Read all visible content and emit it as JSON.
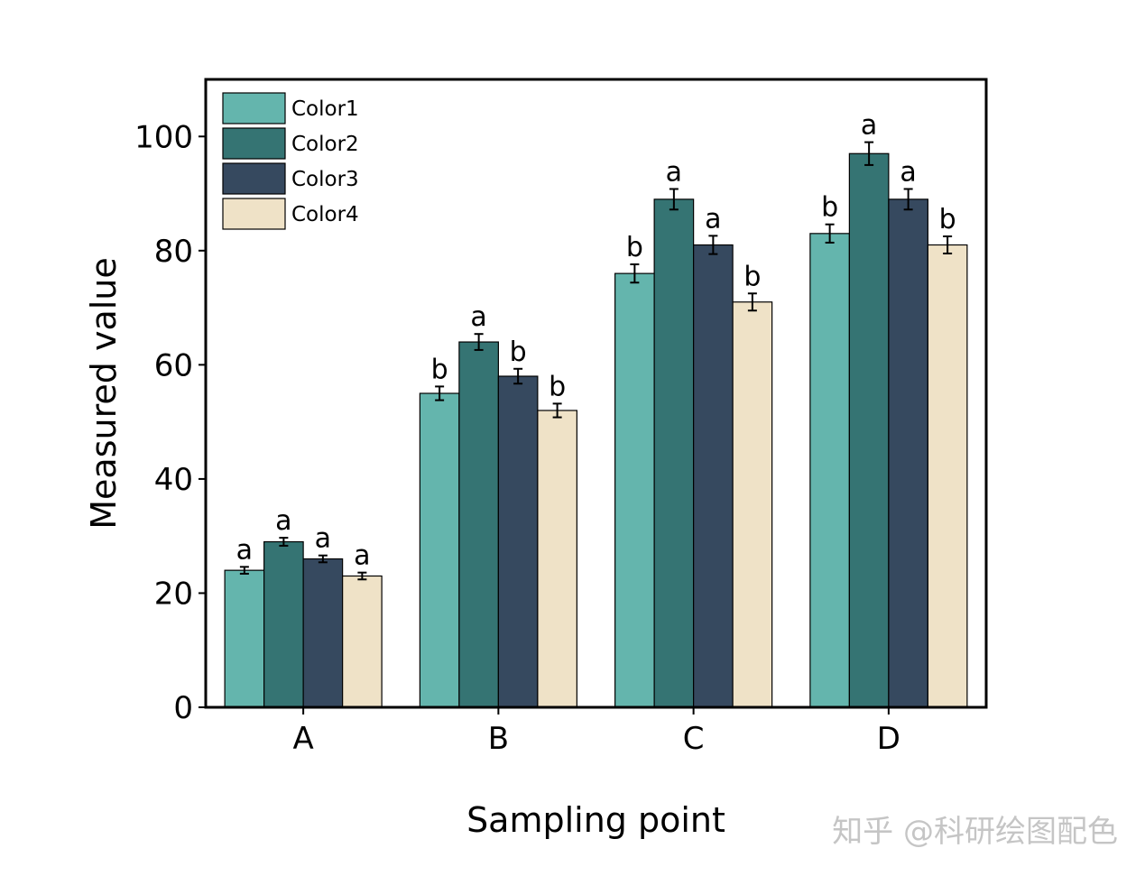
{
  "chart_data": {
    "type": "bar",
    "categories": [
      "A",
      "B",
      "C",
      "D"
    ],
    "series": [
      {
        "name": "Color1",
        "color": "#64b5ad",
        "values": [
          24,
          55,
          76,
          83
        ],
        "errors": [
          0.6,
          1.2,
          1.6,
          1.6
        ],
        "labels": [
          "a",
          "b",
          "b",
          "b"
        ]
      },
      {
        "name": "Color2",
        "color": "#357473",
        "values": [
          29,
          64,
          89,
          97
        ],
        "errors": [
          0.7,
          1.4,
          1.8,
          2.0
        ],
        "labels": [
          "a",
          "a",
          "a",
          "a"
        ]
      },
      {
        "name": "Color3",
        "color": "#36495f",
        "values": [
          26,
          58,
          81,
          89
        ],
        "errors": [
          0.6,
          1.3,
          1.6,
          1.8
        ],
        "labels": [
          "a",
          "b",
          "a",
          "a"
        ]
      },
      {
        "name": "Color4",
        "color": "#efe2c7",
        "values": [
          23,
          52,
          71,
          81
        ],
        "errors": [
          0.6,
          1.2,
          1.5,
          1.5
        ],
        "labels": [
          "a",
          "b",
          "b",
          "b"
        ]
      }
    ],
    "xlabel": "Sampling point",
    "ylabel": "Measured value",
    "ylim": [
      0,
      110
    ],
    "yticks": [
      0,
      20,
      40,
      60,
      80,
      100
    ],
    "legend_position": "top-left"
  },
  "watermark": "知乎 @科研绘图配色"
}
